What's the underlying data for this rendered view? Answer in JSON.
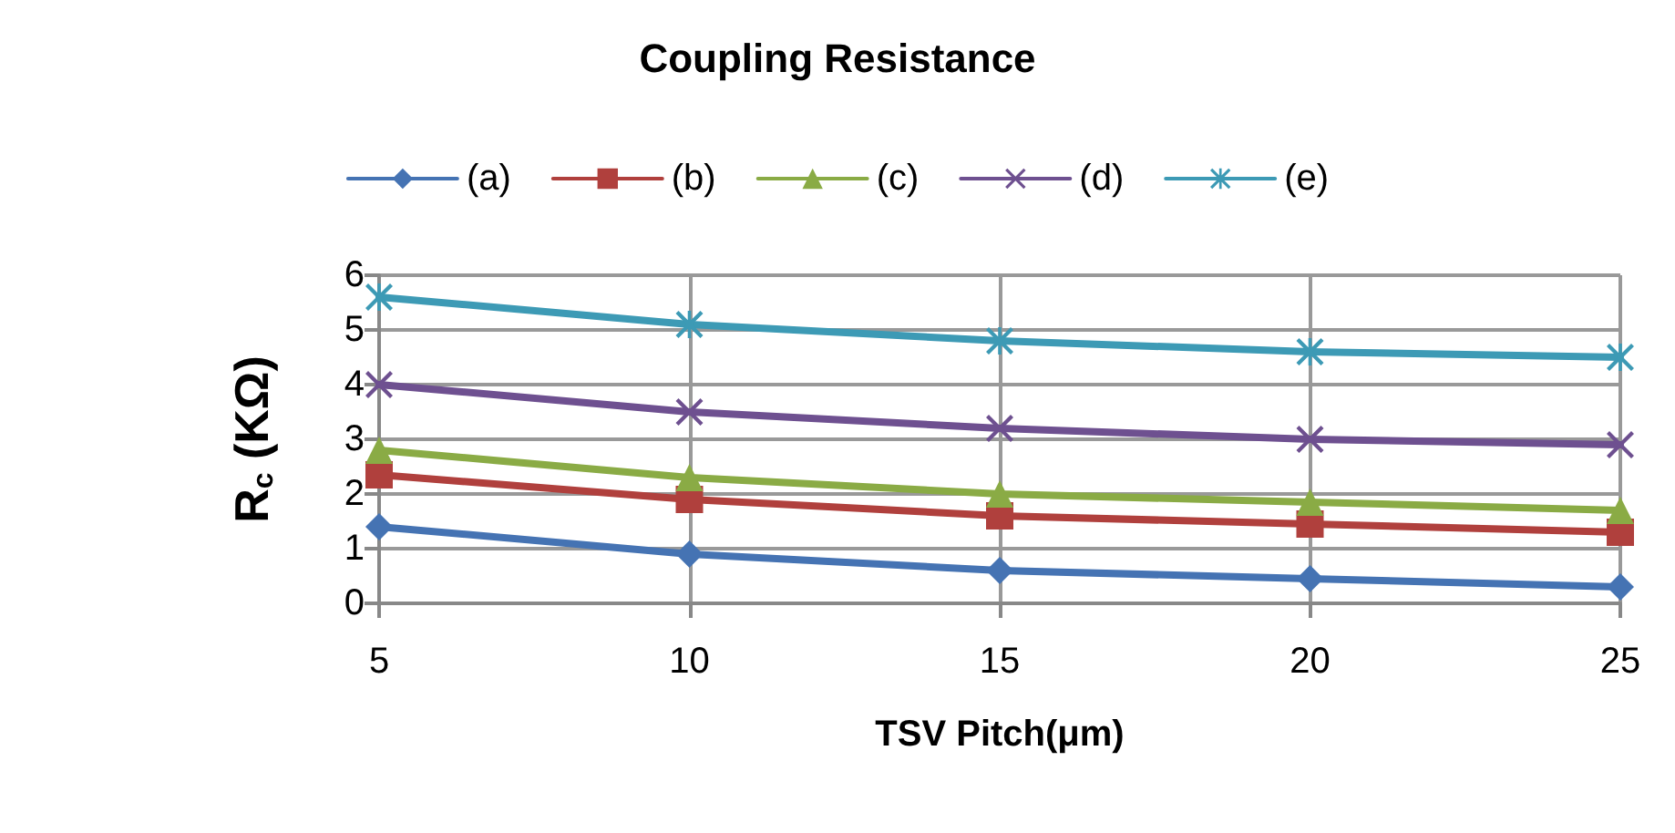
{
  "chart_data": {
    "type": "line",
    "title": "Coupling Resistance",
    "xlabel": "TSV Pitch(μm)",
    "ylabel": "R$_{c}$ (KΩ)",
    "x": [
      5,
      10,
      15,
      20,
      25
    ],
    "xlim": [
      5,
      25
    ],
    "xticks": [
      5,
      10,
      15,
      20,
      25
    ],
    "ylim": [
      0,
      6
    ],
    "yticks": [
      0,
      1,
      2,
      3,
      4,
      5,
      6
    ],
    "grid": true,
    "legend": "top",
    "series": [
      {
        "name": "(a)",
        "color": "#4573b3",
        "marker": "diamond",
        "values": [
          1.4,
          0.9,
          0.6,
          0.45,
          0.3
        ]
      },
      {
        "name": "(b)",
        "color": "#b0403d",
        "marker": "square",
        "values": [
          2.35,
          1.9,
          1.6,
          1.45,
          1.3
        ]
      },
      {
        "name": "(c)",
        "color": "#8aab45",
        "marker": "triangle",
        "values": [
          2.8,
          2.3,
          2.0,
          1.85,
          1.7
        ]
      },
      {
        "name": "(d)",
        "color": "#6e5090",
        "marker": "cross",
        "values": [
          4.0,
          3.5,
          3.2,
          3.0,
          2.9
        ]
      },
      {
        "name": "(e)",
        "color": "#3d9ab5",
        "marker": "star",
        "values": [
          5.6,
          5.1,
          4.8,
          4.6,
          4.5
        ]
      }
    ]
  }
}
